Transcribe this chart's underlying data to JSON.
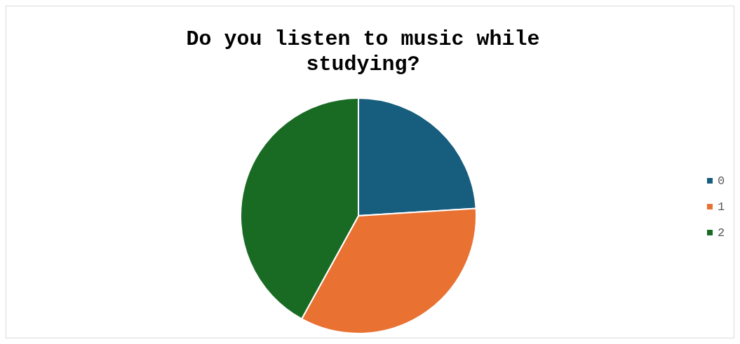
{
  "chart_data": {
    "type": "pie",
    "title": "Do you listen to music while studying?",
    "categories": [
      "0",
      "1",
      "2"
    ],
    "values": [
      24,
      34,
      42
    ],
    "colors": [
      "#175e7e",
      "#e97132",
      "#196b24"
    ],
    "legend": "right"
  }
}
